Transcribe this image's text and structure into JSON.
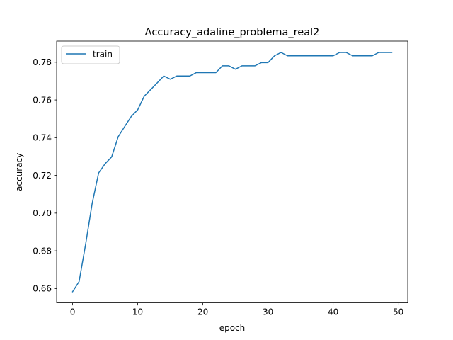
{
  "chart_data": {
    "type": "line",
    "title": "Accuracy_adaline_problema_real2",
    "xlabel": "epoch",
    "ylabel": "accuracy",
    "xlim": [
      -2.45,
      51.45
    ],
    "ylim": [
      0.6524,
      0.7912
    ],
    "xticks": [
      0,
      10,
      20,
      30,
      40,
      50
    ],
    "yticks": [
      0.66,
      0.68,
      0.7,
      0.72,
      0.74,
      0.76,
      0.78
    ],
    "xtick_labels": [
      "0",
      "10",
      "20",
      "30",
      "40",
      "50"
    ],
    "ytick_labels": [
      "0.66",
      "0.68",
      "0.70",
      "0.72",
      "0.74",
      "0.76",
      "0.78"
    ],
    "grid": false,
    "legend_position": "upper-left",
    "series": [
      {
        "name": "train",
        "color": "#1f77b4",
        "x": [
          0,
          1,
          2,
          3,
          4,
          5,
          6,
          7,
          8,
          9,
          10,
          11,
          12,
          13,
          14,
          15,
          16,
          17,
          18,
          19,
          20,
          21,
          22,
          23,
          24,
          25,
          26,
          27,
          28,
          29,
          30,
          31,
          32,
          33,
          34,
          35,
          36,
          37,
          38,
          39,
          40,
          41,
          42,
          43,
          44,
          45,
          46,
          47,
          48,
          49
        ],
        "values": [
          0.6583,
          0.6637,
          0.6834,
          0.705,
          0.7213,
          0.7262,
          0.7298,
          0.7405,
          0.7459,
          0.7512,
          0.7548,
          0.762,
          0.7655,
          0.7691,
          0.7727,
          0.771,
          0.7727,
          0.7727,
          0.7727,
          0.7745,
          0.7745,
          0.7745,
          0.7745,
          0.7781,
          0.7781,
          0.7763,
          0.7781,
          0.7781,
          0.7781,
          0.7798,
          0.7798,
          0.7834,
          0.7852,
          0.7834,
          0.7834,
          0.7834,
          0.7834,
          0.7834,
          0.7834,
          0.7834,
          0.7834,
          0.7852,
          0.7852,
          0.7834,
          0.7834,
          0.7834,
          0.7834,
          0.7852,
          0.7852,
          0.7852
        ]
      }
    ]
  }
}
